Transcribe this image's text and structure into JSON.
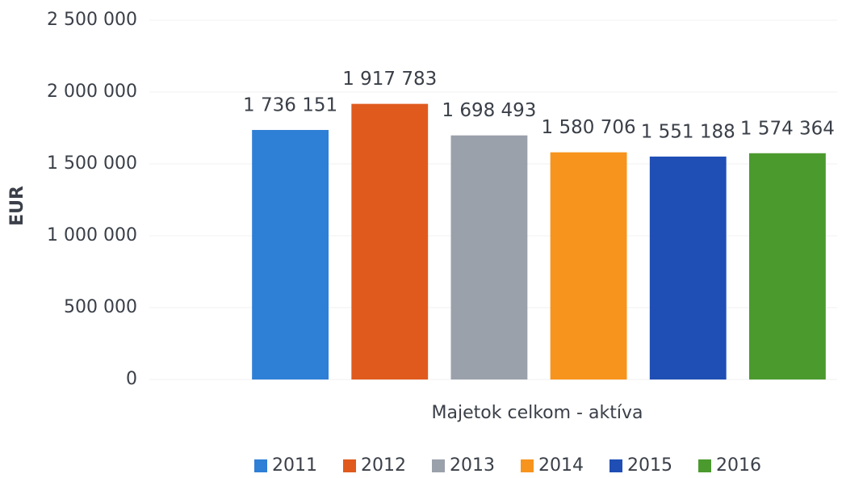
{
  "chart_data": {
    "type": "bar",
    "y_label": "EUR",
    "categories": [
      "Majetok celkom - aktíva"
    ],
    "series": [
      {
        "name": "2011",
        "color": "#2e7fd6",
        "values": [
          1736151
        ],
        "value_labels": [
          "1 736 151"
        ]
      },
      {
        "name": "2012",
        "color": "#e05a1e",
        "values": [
          1917783
        ],
        "value_labels": [
          "1 917 783"
        ]
      },
      {
        "name": "2013",
        "color": "#9ba1ab",
        "values": [
          1698493
        ],
        "value_labels": [
          "1 698 493"
        ]
      },
      {
        "name": "2014",
        "color": "#f7941d",
        "values": [
          1580706
        ],
        "value_labels": [
          "1 580 706"
        ]
      },
      {
        "name": "2015",
        "color": "#1f4fb5",
        "values": [
          1551188
        ],
        "value_labels": [
          "1 551 188"
        ]
      },
      {
        "name": "2016",
        "color": "#4b9a2e",
        "values": [
          1574364
        ],
        "value_labels": [
          "1 574 364"
        ]
      }
    ],
    "ylim": [
      0,
      2500000
    ],
    "yticks": [
      0,
      {
        "value": 500000,
        "label": "500 000"
      },
      {
        "value": 1000000,
        "label": "1 000 000"
      },
      {
        "value": 1500000,
        "label": "1 500 000"
      },
      {
        "value": 2000000,
        "label": "2 000 000"
      },
      {
        "value": 2500000,
        "label": "2 500 000"
      }
    ],
    "grid": true,
    "legend": "bottom"
  }
}
